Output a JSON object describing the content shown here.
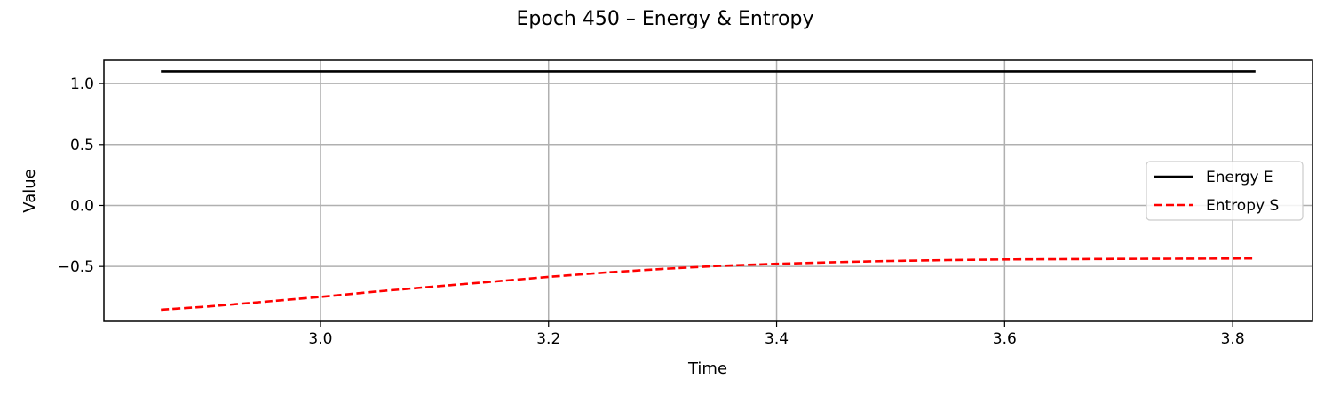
{
  "chart_data": {
    "type": "line",
    "title": "Epoch 450 – Energy & Entropy",
    "xlabel": "Time",
    "ylabel": "Value",
    "xlim": [
      2.81,
      3.87
    ],
    "ylim": [
      -0.95,
      1.19
    ],
    "xticks": [
      3.0,
      3.2,
      3.4,
      3.6,
      3.8
    ],
    "xtick_labels": [
      "3.0",
      "3.2",
      "3.4",
      "3.6",
      "3.8"
    ],
    "yticks": [
      1.0,
      0.5,
      0.0,
      -0.5
    ],
    "ytick_labels": [
      "1.0",
      "0.5",
      "0.0",
      "−0.5"
    ],
    "grid": true,
    "legend_position": "center-right",
    "series": [
      {
        "name": "Energy E",
        "color": "#000000",
        "style": "solid",
        "x": [
          2.86,
          3.0,
          3.2,
          3.4,
          3.6,
          3.82
        ],
        "y": [
          1.1,
          1.1,
          1.1,
          1.1,
          1.1,
          1.1
        ]
      },
      {
        "name": "Entropy S",
        "color": "#ff0000",
        "style": "dashed",
        "x": [
          2.86,
          2.9,
          3.0,
          3.05,
          3.1,
          3.15,
          3.2,
          3.25,
          3.3,
          3.35,
          3.4,
          3.45,
          3.5,
          3.55,
          3.6,
          3.7,
          3.82
        ],
        "y": [
          -0.855,
          -0.83,
          -0.75,
          -0.705,
          -0.665,
          -0.625,
          -0.585,
          -0.55,
          -0.52,
          -0.495,
          -0.478,
          -0.465,
          -0.455,
          -0.448,
          -0.443,
          -0.438,
          -0.435
        ]
      }
    ]
  }
}
